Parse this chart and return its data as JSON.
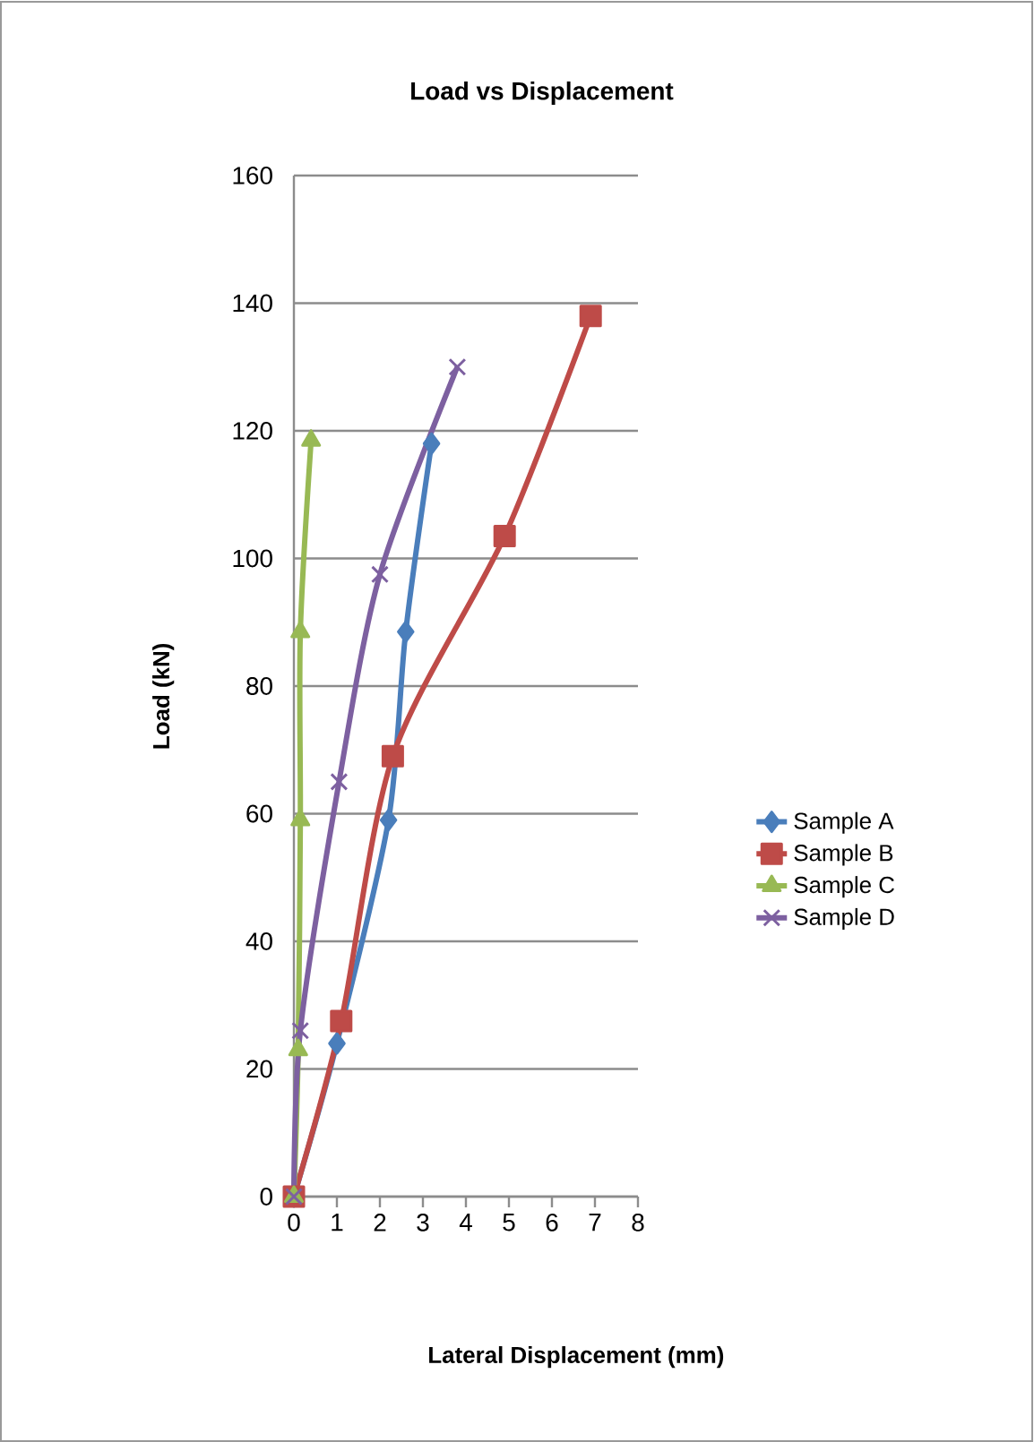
{
  "chart_data": {
    "type": "line",
    "title": "Load vs Displacement",
    "xlabel": "Lateral Displacement (mm)",
    "ylabel": "Load (kN)",
    "xlim": [
      0,
      8
    ],
    "xticks": [
      0,
      1,
      2,
      3,
      4,
      5,
      6,
      7,
      8
    ],
    "ylim": [
      0,
      160
    ],
    "yticks": [
      0,
      20,
      40,
      60,
      80,
      100,
      120,
      140,
      160
    ],
    "grid": "y",
    "legend": "right",
    "line_style": "solid",
    "series": [
      {
        "name": "Sample A",
        "color": "#4a7ebb",
        "marker": "diamond",
        "x": [
          0,
          1.0,
          2.2,
          2.6,
          3.2
        ],
        "values": [
          0,
          24,
          59,
          88.5,
          118
        ]
      },
      {
        "name": "Sample B",
        "color": "#be4b48",
        "marker": "square",
        "x": [
          0,
          1.1,
          2.3,
          4.9,
          6.9
        ],
        "values": [
          0,
          27.5,
          69,
          103.5,
          138
        ]
      },
      {
        "name": "Sample C",
        "color": "#98b954",
        "marker": "triangle",
        "x": [
          0,
          0.1,
          0.15,
          0.15,
          0.4
        ],
        "values": [
          0,
          23,
          59,
          88.5,
          118.5
        ]
      },
      {
        "name": "Sample D",
        "color": "#7d60a0",
        "marker": "cross",
        "x": [
          0,
          0.15,
          1.05,
          2.0,
          3.8
        ],
        "values": [
          0,
          26,
          65,
          97.5,
          130
        ]
      }
    ]
  }
}
